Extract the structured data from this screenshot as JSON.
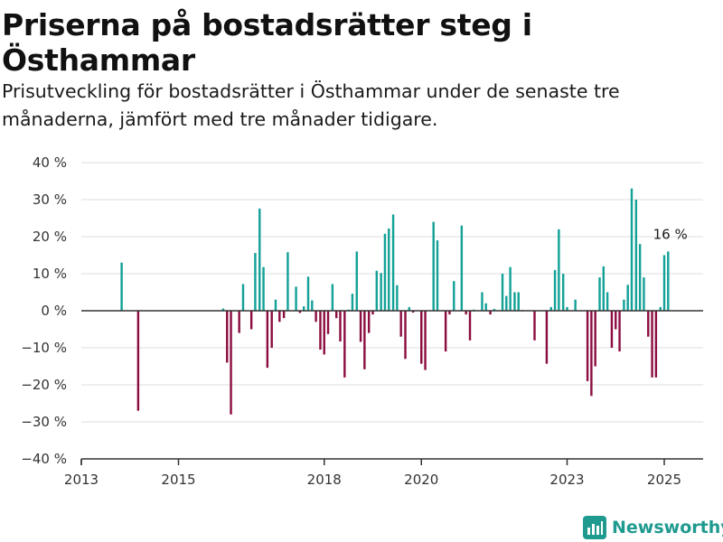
{
  "header": {
    "title": "Priserna på bostadsrätter steg i Östhammar",
    "subtitle": "Prisutveckling för bostadsrätter i Östhammar under de senaste tre månaderna, jämfört med tre månader tidigare."
  },
  "brand": {
    "name": "Newsworthy",
    "icon": "newsworthy-logo-icon"
  },
  "colors": {
    "positive": "#13a198",
    "negative": "#8c0d41",
    "axis": "#333333",
    "grid": "#dddddd",
    "brand": "#1f9a8f"
  },
  "chart_data": {
    "type": "bar",
    "unit": "%",
    "xlim": [
      2013,
      2025.8
    ],
    "ylim": [
      -40,
      40
    ],
    "yticks": [
      40,
      30,
      20,
      10,
      0,
      -10,
      -20,
      -30,
      -40
    ],
    "ytick_labels": [
      "40 %",
      "30 %",
      "20 %",
      "10 %",
      "0 %",
      "−10 %",
      "−20 %",
      "−30 %",
      "−40 %"
    ],
    "xticks": [
      2013,
      2015,
      2018,
      2020,
      2023,
      2025
    ],
    "xtick_labels": [
      "2013",
      "2015",
      "2018",
      "2020",
      "2023",
      "2025"
    ],
    "grid": true,
    "annotation": {
      "text": "16 %",
      "x": 2025.05,
      "y": 16
    },
    "x": [
      2013.83,
      2014.17,
      2015.92,
      2016.0,
      2016.08,
      2016.25,
      2016.33,
      2016.5,
      2016.58,
      2016.67,
      2016.75,
      2016.83,
      2016.92,
      2017.0,
      2017.08,
      2017.17,
      2017.25,
      2017.42,
      2017.5,
      2017.58,
      2017.67,
      2017.75,
      2017.83,
      2017.92,
      2018.0,
      2018.08,
      2018.17,
      2018.25,
      2018.33,
      2018.42,
      2018.5,
      2018.58,
      2018.67,
      2018.75,
      2018.83,
      2018.92,
      2019.0,
      2019.08,
      2019.17,
      2019.25,
      2019.33,
      2019.42,
      2019.5,
      2019.58,
      2019.67,
      2019.75,
      2019.83,
      2020.0,
      2020.08,
      2020.25,
      2020.33,
      2020.5,
      2020.58,
      2020.67,
      2020.83,
      2020.92,
      2021.0,
      2021.08,
      2021.25,
      2021.33,
      2021.42,
      2021.5,
      2021.67,
      2021.75,
      2021.83,
      2021.92,
      2022.0,
      2022.08,
      2022.33,
      2022.58,
      2022.67,
      2022.75,
      2022.83,
      2022.92,
      2023.0,
      2023.17,
      2023.42,
      2023.5,
      2023.58,
      2023.67,
      2023.75,
      2023.83,
      2023.92,
      2024.0,
      2024.08,
      2024.17,
      2024.25,
      2024.33,
      2024.42,
      2024.5,
      2024.58,
      2024.67,
      2024.75,
      2024.83,
      2024.92,
      2025.0,
      2025.08
    ],
    "values": [
      13,
      -27,
      0.6,
      -14,
      -28,
      -6,
      7.2,
      -5,
      15.6,
      27.6,
      11.8,
      -15.4,
      -10,
      3,
      -3,
      -2,
      15.8,
      6.5,
      -0.6,
      1.2,
      9.2,
      2.8,
      -3,
      -10.5,
      -11.8,
      -6.3,
      7.2,
      -2,
      -8.3,
      -18,
      0.3,
      4.6,
      16,
      -8.4,
      -15.8,
      -6,
      -1,
      10.8,
      10.2,
      20.8,
      22.2,
      26,
      6.9,
      -7,
      -13,
      1,
      -0.5,
      -14.3,
      -16,
      24,
      19,
      -11,
      -1,
      8,
      23,
      -1,
      -8,
      0.3,
      5,
      2,
      -1,
      0.5,
      10,
      4,
      11.8,
      5,
      5,
      0.2,
      -8,
      -14.3,
      1,
      11,
      22,
      10,
      1,
      3,
      -19,
      -23,
      -15,
      9,
      12,
      5,
      -10,
      -5,
      -11,
      3,
      7,
      33,
      30,
      18,
      9,
      -7,
      -18,
      -18,
      1,
      15,
      16
    ]
  }
}
